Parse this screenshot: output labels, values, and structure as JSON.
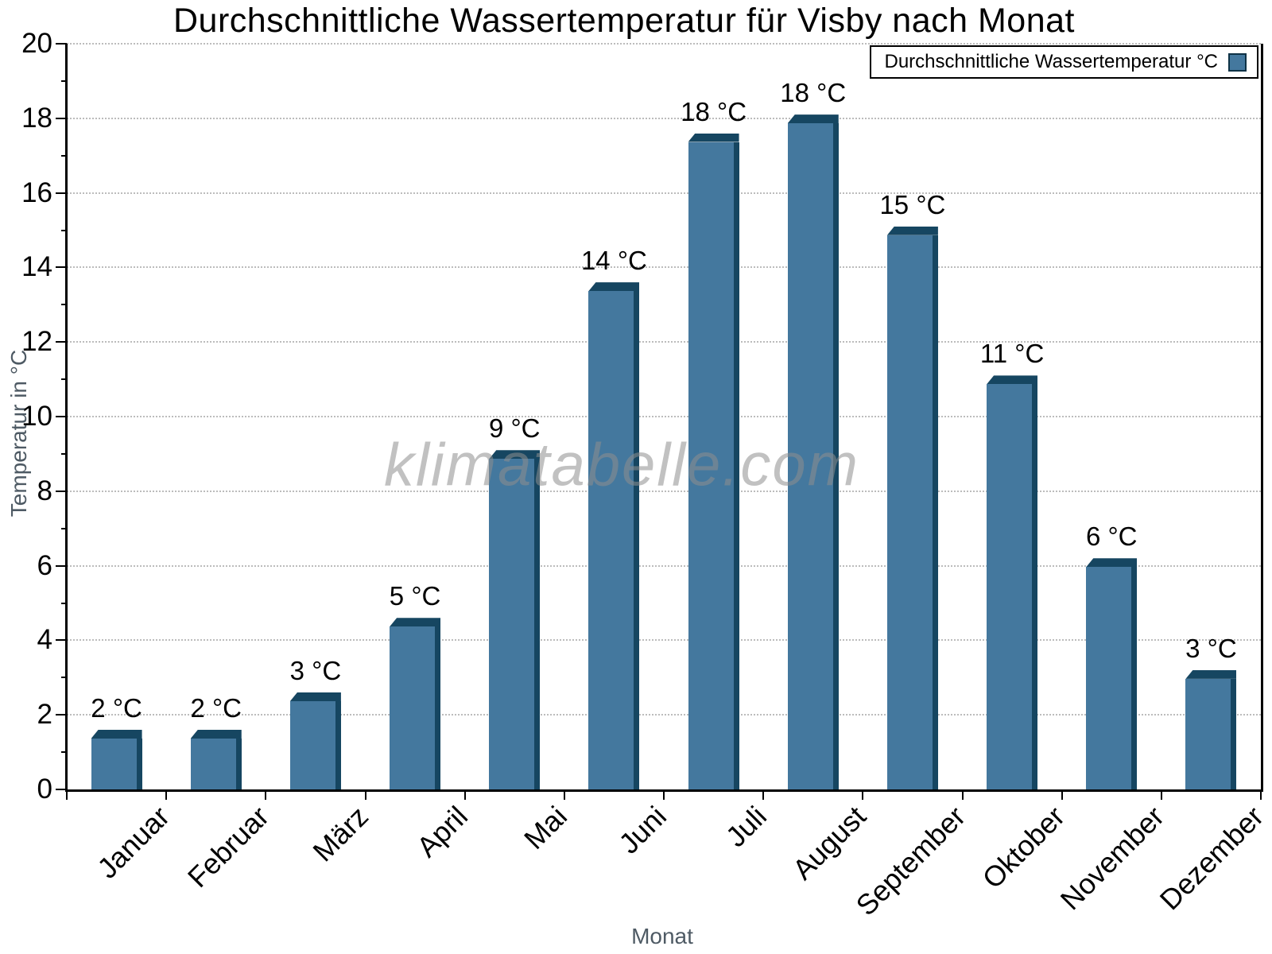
{
  "watermark": "klimatabelle.com",
  "colors": {
    "bar_face": "#44789e",
    "bar_edge": "#164661",
    "grid": "#bcbcbc",
    "axis": "#000000",
    "axis_title_text": "#4e5a64",
    "watermark_text": "#8f8f8f"
  },
  "chart_data": {
    "type": "bar",
    "title": "Durchschnittliche Wassertemperatur für Visby nach Monat",
    "xlabel": "Monat",
    "ylabel": "Temperatur in °C",
    "legend": "Durchschnittliche Wassertemperatur °C",
    "legend_position": "top-right",
    "categories": [
      "Januar",
      "Februar",
      "März",
      "April",
      "Mai",
      "Juni",
      "Juli",
      "August",
      "September",
      "Oktober",
      "November",
      "Dezember"
    ],
    "values": [
      1.6,
      1.6,
      2.6,
      4.6,
      9.1,
      13.6,
      17.6,
      18.1,
      15.1,
      11.1,
      6.2,
      3.2
    ],
    "bar_labels": [
      "2 °C",
      "2 °C",
      "3 °C",
      "5 °C",
      "9 °C",
      "14 °C",
      "18 °C",
      "18 °C",
      "15 °C",
      "11 °C",
      "6 °C",
      "3 °C"
    ],
    "ylim": [
      0,
      20
    ],
    "ytick_interval": 2,
    "ytick_minor_interval": 1,
    "grid": "horizontal-dotted"
  }
}
